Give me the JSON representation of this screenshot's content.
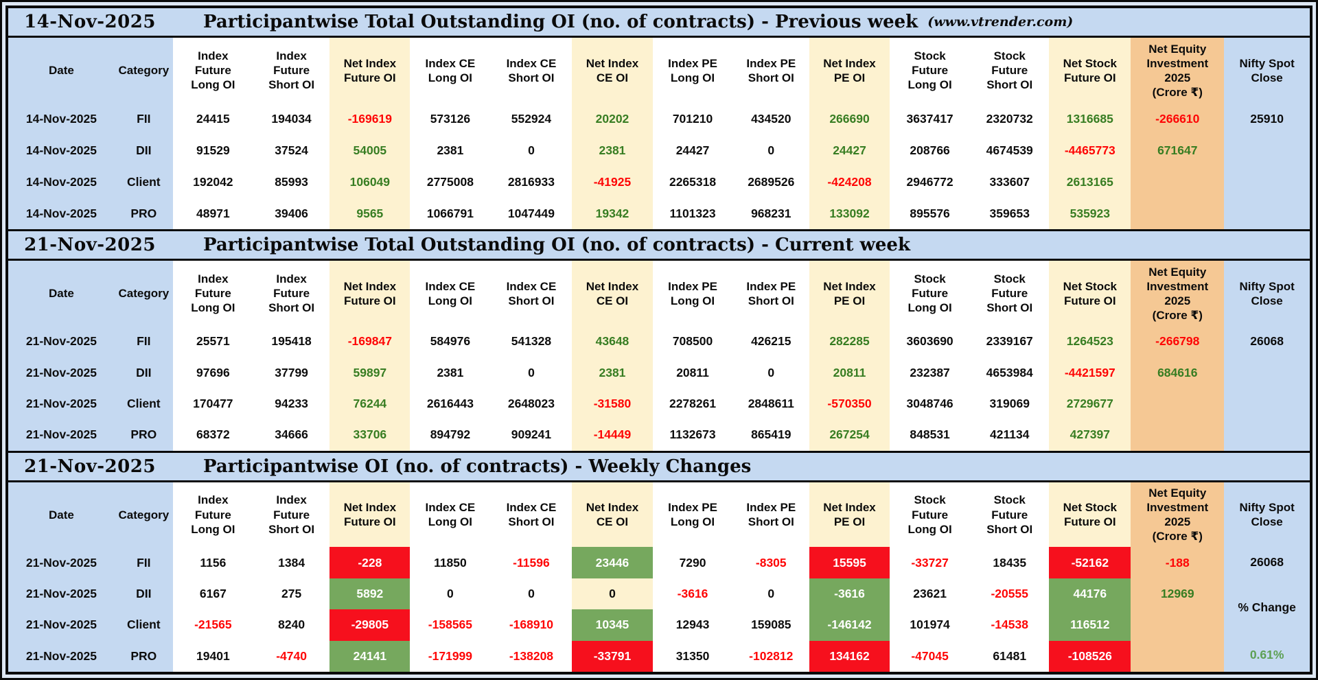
{
  "colors": {
    "title_bar_blue": "#c5d9f1",
    "net_column_cream": "#fdf2d0",
    "equity_column_peach": "#f5c894",
    "negative_red": "#fe0505",
    "positive_green": "#377d22",
    "highlight_red_bg": "#f6101d",
    "highlight_green_bg": "#76a85e",
    "percent_change_green": "#5da054"
  },
  "columns": [
    {
      "id": "date",
      "label": "Date",
      "bg": "blue",
      "w": 8.2
    },
    {
      "id": "category",
      "label": "Category",
      "bg": "blue",
      "w": 4.5
    },
    {
      "id": "index-future-long-oi",
      "label": "Index\nFuture\nLong OI",
      "bg": "white",
      "w": 6.2
    },
    {
      "id": "index-future-short-oi",
      "label": "Index\nFuture\nShort OI",
      "bg": "white",
      "w": 5.9
    },
    {
      "id": "net-index-future-oi",
      "label": "Net Index\nFuture OI",
      "bg": "cream",
      "w": 6.2
    },
    {
      "id": "index-ce-long-oi",
      "label": "Index CE\nLong OI",
      "bg": "white",
      "w": 6.2
    },
    {
      "id": "index-ce-short-oi",
      "label": "Index CE\nShort OI",
      "bg": "white",
      "w": 6.3
    },
    {
      "id": "net-index-ce-oi",
      "label": "Net Index\nCE OI",
      "bg": "cream",
      "w": 6.2
    },
    {
      "id": "index-pe-long-oi",
      "label": "Index PE\nLong OI",
      "bg": "white",
      "w": 6.2
    },
    {
      "id": "index-pe-short-oi",
      "label": "Index PE\nShort OI",
      "bg": "white",
      "w": 5.9
    },
    {
      "id": "net-index-pe-oi",
      "label": "Net Index\nPE OI",
      "bg": "cream",
      "w": 6.2
    },
    {
      "id": "stock-future-long-oi",
      "label": "Stock\nFuture\nLong OI",
      "bg": "white",
      "w": 6.2
    },
    {
      "id": "stock-future-short-oi",
      "label": "Stock\nFuture\nShort OI",
      "bg": "white",
      "w": 6.1
    },
    {
      "id": "net-stock-future-oi",
      "label": "Net Stock\nFuture OI",
      "bg": "cream",
      "w": 6.3
    },
    {
      "id": "net-equity-investment",
      "label": "Net Equity\nInvestment\n2025\n(Crore ₹)",
      "bg": "peach",
      "w": 7.2
    },
    {
      "id": "nifty-spot-close",
      "label": "Nifty Spot\nClose",
      "bg": "blue",
      "w": 6.6
    }
  ],
  "sections": [
    {
      "id": "previous-week",
      "title_date": "14-Nov-2025",
      "title_text": "Participantwise Total Outstanding OI (no. of contracts) - Previous week",
      "title_note": "(www.vtrender.com)",
      "rows": [
        {
          "date": "14-Nov-2025",
          "category": "FII",
          "cells": [
            [
              "24415",
              "k"
            ],
            [
              "194034",
              "k"
            ],
            [
              "-169619",
              "r"
            ],
            [
              "573126",
              "k"
            ],
            [
              "552924",
              "k"
            ],
            [
              "20202",
              "g"
            ],
            [
              "701210",
              "k"
            ],
            [
              "434520",
              "k"
            ],
            [
              "266690",
              "g"
            ],
            [
              "3637417",
              "k"
            ],
            [
              "2320732",
              "k"
            ],
            [
              "1316685",
              "g"
            ]
          ],
          "equity": [
            "-266610",
            "r"
          ]
        },
        {
          "date": "14-Nov-2025",
          "category": "DII",
          "cells": [
            [
              "91529",
              "k"
            ],
            [
              "37524",
              "k"
            ],
            [
              "54005",
              "g"
            ],
            [
              "2381",
              "k"
            ],
            [
              "0",
              "k"
            ],
            [
              "2381",
              "g"
            ],
            [
              "24427",
              "k"
            ],
            [
              "0",
              "k"
            ],
            [
              "24427",
              "g"
            ],
            [
              "208766",
              "k"
            ],
            [
              "4674539",
              "k"
            ],
            [
              "-4465773",
              "r"
            ]
          ],
          "equity": [
            "671647",
            "g"
          ]
        },
        {
          "date": "14-Nov-2025",
          "category": "Client",
          "cells": [
            [
              "192042",
              "k"
            ],
            [
              "85993",
              "k"
            ],
            [
              "106049",
              "g"
            ],
            [
              "2775008",
              "k"
            ],
            [
              "2816933",
              "k"
            ],
            [
              "-41925",
              "r"
            ],
            [
              "2265318",
              "k"
            ],
            [
              "2689526",
              "k"
            ],
            [
              "-424208",
              "r"
            ],
            [
              "2946772",
              "k"
            ],
            [
              "333607",
              "k"
            ],
            [
              "2613165",
              "g"
            ]
          ],
          "equity": [
            "",
            ""
          ]
        },
        {
          "date": "14-Nov-2025",
          "category": "PRO",
          "cells": [
            [
              "48971",
              "k"
            ],
            [
              "39406",
              "k"
            ],
            [
              "9565",
              "g"
            ],
            [
              "1066791",
              "k"
            ],
            [
              "1047449",
              "k"
            ],
            [
              "19342",
              "g"
            ],
            [
              "1101323",
              "k"
            ],
            [
              "968231",
              "k"
            ],
            [
              "133092",
              "g"
            ],
            [
              "895576",
              "k"
            ],
            [
              "359653",
              "k"
            ],
            [
              "535923",
              "g"
            ]
          ],
          "equity": [
            "",
            ""
          ]
        }
      ],
      "nifty": {
        "spot": "25910"
      }
    },
    {
      "id": "current-week",
      "title_date": "21-Nov-2025",
      "title_text": "Participantwise Total Outstanding OI (no. of contracts) - Current week",
      "rows": [
        {
          "date": "21-Nov-2025",
          "category": "FII",
          "cells": [
            [
              "25571",
              "k"
            ],
            [
              "195418",
              "k"
            ],
            [
              "-169847",
              "r"
            ],
            [
              "584976",
              "k"
            ],
            [
              "541328",
              "k"
            ],
            [
              "43648",
              "g"
            ],
            [
              "708500",
              "k"
            ],
            [
              "426215",
              "k"
            ],
            [
              "282285",
              "g"
            ],
            [
              "3603690",
              "k"
            ],
            [
              "2339167",
              "k"
            ],
            [
              "1264523",
              "g"
            ]
          ],
          "equity": [
            "-266798",
            "r"
          ]
        },
        {
          "date": "21-Nov-2025",
          "category": "DII",
          "cells": [
            [
              "97696",
              "k"
            ],
            [
              "37799",
              "k"
            ],
            [
              "59897",
              "g"
            ],
            [
              "2381",
              "k"
            ],
            [
              "0",
              "k"
            ],
            [
              "2381",
              "g"
            ],
            [
              "20811",
              "k"
            ],
            [
              "0",
              "k"
            ],
            [
              "20811",
              "g"
            ],
            [
              "232387",
              "k"
            ],
            [
              "4653984",
              "k"
            ],
            [
              "-4421597",
              "r"
            ]
          ],
          "equity": [
            "684616",
            "g"
          ]
        },
        {
          "date": "21-Nov-2025",
          "category": "Client",
          "cells": [
            [
              "170477",
              "k"
            ],
            [
              "94233",
              "k"
            ],
            [
              "76244",
              "g"
            ],
            [
              "2616443",
              "k"
            ],
            [
              "2648023",
              "k"
            ],
            [
              "-31580",
              "r"
            ],
            [
              "2278261",
              "k"
            ],
            [
              "2848611",
              "k"
            ],
            [
              "-570350",
              "r"
            ],
            [
              "3048746",
              "k"
            ],
            [
              "319069",
              "k"
            ],
            [
              "2729677",
              "g"
            ]
          ],
          "equity": [
            "",
            ""
          ]
        },
        {
          "date": "21-Nov-2025",
          "category": "PRO",
          "cells": [
            [
              "68372",
              "k"
            ],
            [
              "34666",
              "k"
            ],
            [
              "33706",
              "g"
            ],
            [
              "894792",
              "k"
            ],
            [
              "909241",
              "k"
            ],
            [
              "-14449",
              "r"
            ],
            [
              "1132673",
              "k"
            ],
            [
              "865419",
              "k"
            ],
            [
              "267254",
              "g"
            ],
            [
              "848531",
              "k"
            ],
            [
              "421134",
              "k"
            ],
            [
              "427397",
              "g"
            ]
          ],
          "equity": [
            "",
            ""
          ]
        }
      ],
      "nifty": {
        "spot": "26068"
      }
    },
    {
      "id": "weekly-changes",
      "title_date": "21-Nov-2025",
      "title_text": "Participantwise OI (no. of contracts) - Weekly Changes",
      "rows": [
        {
          "date": "21-Nov-2025",
          "category": "FII",
          "cells": [
            [
              "1156",
              "k"
            ],
            [
              "1384",
              "k"
            ],
            [
              "-228",
              "wr"
            ],
            [
              "11850",
              "k"
            ],
            [
              "-11596",
              "r"
            ],
            [
              "23446",
              "wg"
            ],
            [
              "7290",
              "k"
            ],
            [
              "-8305",
              "r"
            ],
            [
              "15595",
              "wr"
            ],
            [
              "-33727",
              "r"
            ],
            [
              "18435",
              "k"
            ],
            [
              "-52162",
              "wr"
            ]
          ],
          "equity": [
            "-188",
            "r"
          ]
        },
        {
          "date": "21-Nov-2025",
          "category": "DII",
          "cells": [
            [
              "6167",
              "k"
            ],
            [
              "275",
              "k"
            ],
            [
              "5892",
              "wg"
            ],
            [
              "0",
              "k"
            ],
            [
              "0",
              "k"
            ],
            [
              "0",
              "k"
            ],
            [
              "-3616",
              "r"
            ],
            [
              "0",
              "k"
            ],
            [
              "-3616",
              "wg"
            ],
            [
              "23621",
              "k"
            ],
            [
              "-20555",
              "r"
            ],
            [
              "44176",
              "wg"
            ]
          ],
          "equity": [
            "12969",
            "g"
          ]
        },
        {
          "date": "21-Nov-2025",
          "category": "Client",
          "cells": [
            [
              "-21565",
              "r"
            ],
            [
              "8240",
              "k"
            ],
            [
              "-29805",
              "wr"
            ],
            [
              "-158565",
              "r"
            ],
            [
              "-168910",
              "r"
            ],
            [
              "10345",
              "wg"
            ],
            [
              "12943",
              "k"
            ],
            [
              "159085",
              "k"
            ],
            [
              "-146142",
              "wg"
            ],
            [
              "101974",
              "k"
            ],
            [
              "-14538",
              "r"
            ],
            [
              "116512",
              "wg"
            ]
          ],
          "equity": [
            "",
            ""
          ]
        },
        {
          "date": "21-Nov-2025",
          "category": "PRO",
          "cells": [
            [
              "19401",
              "k"
            ],
            [
              "-4740",
              "r"
            ],
            [
              "24141",
              "wg"
            ],
            [
              "-171999",
              "r"
            ],
            [
              "-138208",
              "r"
            ],
            [
              "-33791",
              "wr"
            ],
            [
              "31350",
              "k"
            ],
            [
              "-102812",
              "r"
            ],
            [
              "134162",
              "wr"
            ],
            [
              "-47045",
              "r"
            ],
            [
              "61481",
              "k"
            ],
            [
              "-108526",
              "wr"
            ]
          ],
          "equity": [
            "",
            ""
          ]
        }
      ],
      "nifty": {
        "spot": "26068",
        "pct_label": "% Change",
        "pct_value": "0.61%"
      }
    }
  ]
}
